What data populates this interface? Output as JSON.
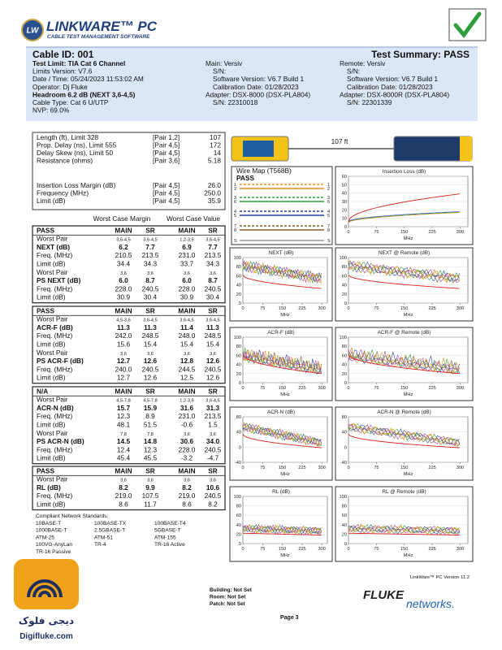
{
  "header": {
    "logo_mark": "LW",
    "logo": "LINKWARE™ PC",
    "tagline": "CABLE TEST MANAGEMENT SOFTWARE"
  },
  "summary": {
    "cable_id": "Cable ID: 001",
    "test_summary": "Test Summary: PASS",
    "left": [
      "Test Limit: TIA Cat 6 Channel",
      "Limits Version: V7.6",
      "Date / Time: 05/24/2023  11:53:02 AM",
      "Operator: Dj Fluke",
      "Headroom 6.2 dB (NEXT 3,6-4,5)",
      "Cable Type: Cat 6 U/UTP",
      "NVP: 69.0%"
    ],
    "main": [
      "Main: Versiv",
      "S/N:",
      "Software Version: V6.7 Build 1",
      "Calibration Date: 01/28/2023",
      "Adapter: DSX-8000 (DSX-PLA804)",
      "S/N: 22310018"
    ],
    "remote": [
      "Remote: Versiv",
      "S/N:",
      "Software Version: V6.7 Build 1",
      "Calibration Date: 01/28/2023",
      "Adapter: DSX-8000R (DSX-PLA804)",
      "S/N: 22301339"
    ]
  },
  "length_table": [
    [
      "Length (ft), Limit 328",
      "[Pair 1,2]",
      "107"
    ],
    [
      "Prop. Delay (ns), Limit 555",
      "[Pair 4,5]",
      "172"
    ],
    [
      "Delay Skew (ns), Limit 50",
      "[Pair 4,5]",
      "14"
    ],
    [
      "Resistance (ohms)",
      "[Pair 3,6]",
      "5.18"
    ],
    [
      "Insertion Loss Margin (dB)",
      "[Pair 4,5]",
      "26.0"
    ],
    [
      "Frequency (MHz)",
      "[Pair 4,5]",
      "250.0"
    ],
    [
      "Limit (dB)",
      "[Pair 4,5]",
      "35.9"
    ]
  ],
  "worst_case_headers": [
    "Worst Case Margin",
    "Worst Case Value"
  ],
  "sections": [
    [
      [
        "PASS",
        "MAIN",
        "SR",
        "MAIN",
        "SR"
      ],
      [
        "Worst Pair",
        "3,6-4,5",
        "3,6-4,5",
        "1,2-3,6",
        "3,6-4,5"
      ],
      [
        "NEXT (dB)",
        "6.2",
        "7.7",
        "6.9",
        "7.7"
      ],
      [
        "Freq. (MHz)",
        "210.5",
        "213.5",
        "231.0",
        "213.5"
      ],
      [
        "Limit (dB)",
        "34.4",
        "34.3",
        "33.7",
        "34.3"
      ],
      [
        "Worst Pair",
        "3,6",
        "3,6",
        "3,6",
        "3,6"
      ],
      [
        "PS NEXT (dB)",
        "6.0",
        "8.7",
        "6.0",
        "8.7"
      ],
      [
        "Freq. (MHz)",
        "228.0",
        "240.5",
        "228.0",
        "240.5"
      ],
      [
        "Limit (dB)",
        "30.9",
        "30.4",
        "30.9",
        "30.4"
      ]
    ],
    [
      [
        "PASS",
        "MAIN",
        "SR",
        "MAIN",
        "SR"
      ],
      [
        "Worst Pair",
        "4,5-3,6",
        "3,6-4,5",
        "3,6-4,5",
        "3,6-4,5"
      ],
      [
        "ACR-F (dB)",
        "11.3",
        "11.3",
        "11.4",
        "11.3"
      ],
      [
        "Freq. (MHz)",
        "242.0",
        "248.5",
        "248.0",
        "248.5"
      ],
      [
        "Limit (dB)",
        "15.6",
        "15.4",
        "15.4",
        "15.4"
      ],
      [
        "Worst Pair",
        "3,6",
        "3,6",
        "3,6",
        "3,6"
      ],
      [
        "PS ACR-F (dB)",
        "12.7",
        "12.6",
        "12.8",
        "12.6"
      ],
      [
        "Freq. (MHz)",
        "240.0",
        "240.5",
        "244.5",
        "240.5"
      ],
      [
        "Limit (dB)",
        "12.7",
        "12.6",
        "12.5",
        "12.6"
      ]
    ],
    [
      [
        "N/A",
        "MAIN",
        "SR",
        "MAIN",
        "SR"
      ],
      [
        "Worst Pair",
        "4,5-7,8",
        "4,5-7,8",
        "1,2-3,6",
        "3,6-4,5"
      ],
      [
        "ACR-N (dB)",
        "15.7",
        "15.9",
        "31.6",
        "31.3"
      ],
      [
        "Freq. (MHz)",
        "12.3",
        "8.9",
        "231.0",
        "213.5"
      ],
      [
        "Limit (dB)",
        "48.1",
        "51.5",
        "-0.6",
        "1.5"
      ],
      [
        "Worst Pair",
        "7,8",
        "7,8",
        "3,6",
        "3,6"
      ],
      [
        "PS ACR-N (dB)",
        "14.5",
        "14.8",
        "30.6",
        "34.0"
      ],
      [
        "Freq. (MHz)",
        "12.4",
        "12.3",
        "228.0",
        "240.5"
      ],
      [
        "Limit (dB)",
        "45.4",
        "45.5",
        "-3.2",
        "-4.7"
      ]
    ],
    [
      [
        "PASS",
        "MAIN",
        "SR",
        "MAIN",
        "SR"
      ],
      [
        "Worst Pair",
        "3,6",
        "3,6",
        "3,6",
        "3,6"
      ],
      [
        "RL (dB)",
        "8.2",
        "9.9",
        "8.2",
        "10.6"
      ],
      [
        "Freq. (MHz)",
        "219.0",
        "107.5",
        "219.0",
        "240.5"
      ],
      [
        "Limit (dB)",
        "8.6",
        "11.7",
        "8.6",
        "8.2"
      ]
    ]
  ],
  "length_display": "107 ft",
  "wire_map": {
    "title": "Wire Map (T568B)",
    "result": "PASS",
    "pins": [
      "1",
      "2",
      "3",
      "6",
      "4",
      "5",
      "7",
      "8",
      "S"
    ]
  },
  "graphs": [
    {
      "title": "Insertion Loss (dB)",
      "yticks": [
        60,
        50,
        40,
        30,
        20,
        10,
        0
      ],
      "xticks": [
        0,
        75,
        150,
        225,
        300
      ],
      "xlabel": "MHz"
    },
    {
      "title": "NEXT (dB)",
      "yticks": [
        100,
        80,
        60,
        40,
        20,
        0
      ],
      "xticks": [
        0,
        75,
        150,
        225,
        300
      ],
      "xlabel": "MHz"
    },
    {
      "title": "NEXT @ Remote (dB)",
      "yticks": [
        100,
        80,
        60,
        40,
        20,
        0
      ],
      "xticks": [
        0,
        75,
        150,
        225,
        300
      ],
      "xlabel": "MHz"
    },
    {
      "title": "ACR-F (dB)",
      "yticks": [
        100,
        80,
        60,
        40,
        20,
        0
      ],
      "xticks": [
        0,
        75,
        150,
        225,
        300
      ],
      "xlabel": "MHz"
    },
    {
      "title": "ACR-F @ Remote (dB)",
      "yticks": [
        100,
        80,
        60,
        40,
        20,
        0
      ],
      "xticks": [
        0,
        75,
        150,
        225,
        300
      ],
      "xlabel": "MHz"
    },
    {
      "title": "ACR-N (dB)",
      "yticks": [
        80,
        40,
        0,
        -40
      ],
      "xticks": [
        0,
        75,
        150,
        225,
        300
      ],
      "xlabel": "MHz"
    },
    {
      "title": "ACR-N @ Remote (dB)",
      "yticks": [
        80,
        40,
        0,
        -40
      ],
      "xticks": [
        0,
        75,
        150,
        225,
        300
      ],
      "xlabel": "MHz"
    },
    {
      "title": "RL (dB)",
      "yticks": [
        100,
        80,
        60,
        40,
        20,
        0
      ],
      "xticks": [
        0,
        75,
        150,
        225,
        300
      ],
      "xlabel": "MHz"
    },
    {
      "title": "RL @ Remote (dB)",
      "yticks": [
        100,
        80,
        60,
        40,
        20,
        0
      ],
      "xticks": [
        0,
        75,
        150,
        225,
        300
      ],
      "xlabel": "MHz"
    }
  ],
  "standards": {
    "title": "Compliant Network Standards:",
    "items": [
      "10BASE-T",
      "100BASE-TX",
      "100BASE-T4",
      "1000BASE-T",
      "2.5GBASE-T",
      "5GBASE-T",
      "ATM-25",
      "ATM-51",
      "ATM-155",
      "100VG-AnyLan",
      "TR-4",
      "TR-16 Active",
      "TR-16 Passive"
    ]
  },
  "footer": {
    "version": "LinkWare™ PC Version 11.2",
    "building": "Building: Not Set",
    "room": "Room: Not Set",
    "patch": "Patch: Not Set",
    "page": "Page 3",
    "brand": "FLUKE",
    "brand_sub": "networks.",
    "watermark_fa": "دیجی فلوک",
    "watermark_url": "Digifluke.com"
  }
}
